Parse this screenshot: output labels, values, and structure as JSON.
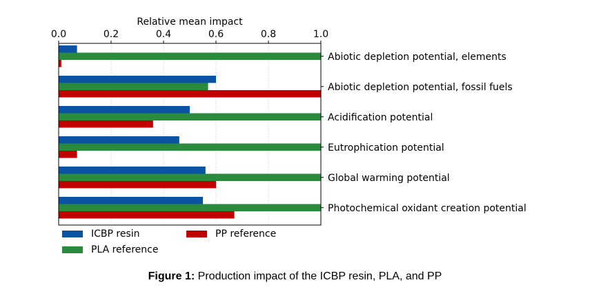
{
  "chart_data": {
    "type": "bar",
    "orientation": "horizontal",
    "title": "",
    "xlabel": "Relative mean impact",
    "ylabel": "",
    "xlim": [
      0,
      1
    ],
    "x_ticks": [
      "0.0",
      "0.2",
      "0.4",
      "0.6",
      "0.8",
      "1.0"
    ],
    "x_axis_position": "top",
    "category_label_position": "right",
    "grid": "vertical dotted",
    "legend_placement": "bottom-left",
    "categories": [
      "Abiotic depletion potential, elements",
      "Abiotic depletion potential, fossil fuels",
      "Acidification potential",
      "Eutrophication potential",
      "Global warming potential",
      "Photochemical oxidant creation potential"
    ],
    "series": [
      {
        "name": "ICBP resin",
        "color": "#0a52a3",
        "values": [
          0.07,
          0.6,
          0.5,
          0.46,
          0.56,
          0.55
        ]
      },
      {
        "name": "PLA reference",
        "color": "#2a8b3c",
        "values": [
          1.0,
          0.57,
          1.0,
          1.0,
          1.0,
          1.0
        ]
      },
      {
        "name": "PP reference",
        "color": "#c00000",
        "values": [
          0.01,
          1.0,
          0.36,
          0.07,
          0.6,
          0.67
        ]
      }
    ]
  },
  "caption": {
    "label": "Figure 1:",
    "text": " Production impact of the ICBP resin, PLA, and PP"
  }
}
